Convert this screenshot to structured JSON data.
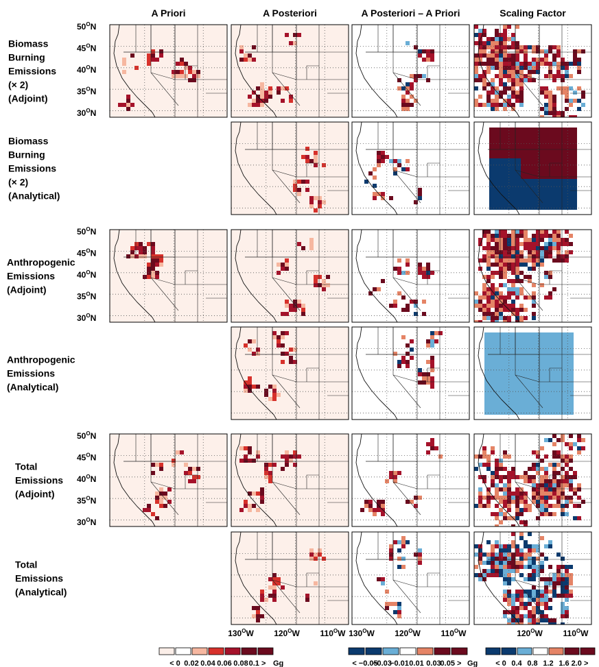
{
  "columns": [
    "A Priori",
    "A Posteriori",
    "A Posteriori – A Priori",
    "Scaling Factor"
  ],
  "rows": [
    [
      "Biomass",
      "Burning",
      "Emissions",
      "(× 2)",
      "(Adjoint)"
    ],
    [
      "Biomass",
      "Burning",
      "Emissions",
      "(× 2)",
      "(Analytical)"
    ],
    [
      "Anthropogenic",
      "Emissions",
      "(Adjoint)"
    ],
    [
      "Anthropogenic",
      "Emissions",
      "(Analytical)"
    ],
    [
      "Total",
      "Emissions",
      "(Adjoint)"
    ],
    [
      "Total",
      "Emissions",
      "(Analytical)"
    ]
  ],
  "lat_labels": [
    "50",
    "45",
    "40",
    "35",
    "30"
  ],
  "lon_labels": [
    "130",
    "120",
    "110"
  ],
  "degree_mark": "O",
  "lat_hemisphere": "N",
  "lon_hemisphere": "W",
  "colorbars": [
    {
      "labels": [
        "< 0",
        "0.02",
        "0.04",
        "0.06",
        "0.08",
        "0.1 >"
      ],
      "unit": "Gg",
      "colors": [
        "#fbeee8",
        "#ffffff",
        "#f6b7a0",
        "#d7312b",
        "#a5122a",
        "#6b0a1e",
        "#6b0a1e"
      ]
    },
    {
      "labels": [
        "< −0.05",
        "−0.03",
        "−0.01",
        "0.01",
        "0.03",
        "0.05 >"
      ],
      "unit": "Gg",
      "colors": [
        "#0b3a6e",
        "#0b3a6e",
        "#6aaed6",
        "#ffffff",
        "#e58466",
        "#6b0a1e",
        "#6b0a1e"
      ]
    },
    {
      "labels": [
        "< 0",
        "0.4",
        "0.8",
        "1.2",
        "1.6",
        "2.0 >"
      ],
      "colors": [
        "#0b3a6e",
        "#0b3a6e",
        "#6aaed6",
        "#ffffff",
        "#e58466",
        "#6b0a1e",
        "#6b0a1e"
      ]
    }
  ]
}
